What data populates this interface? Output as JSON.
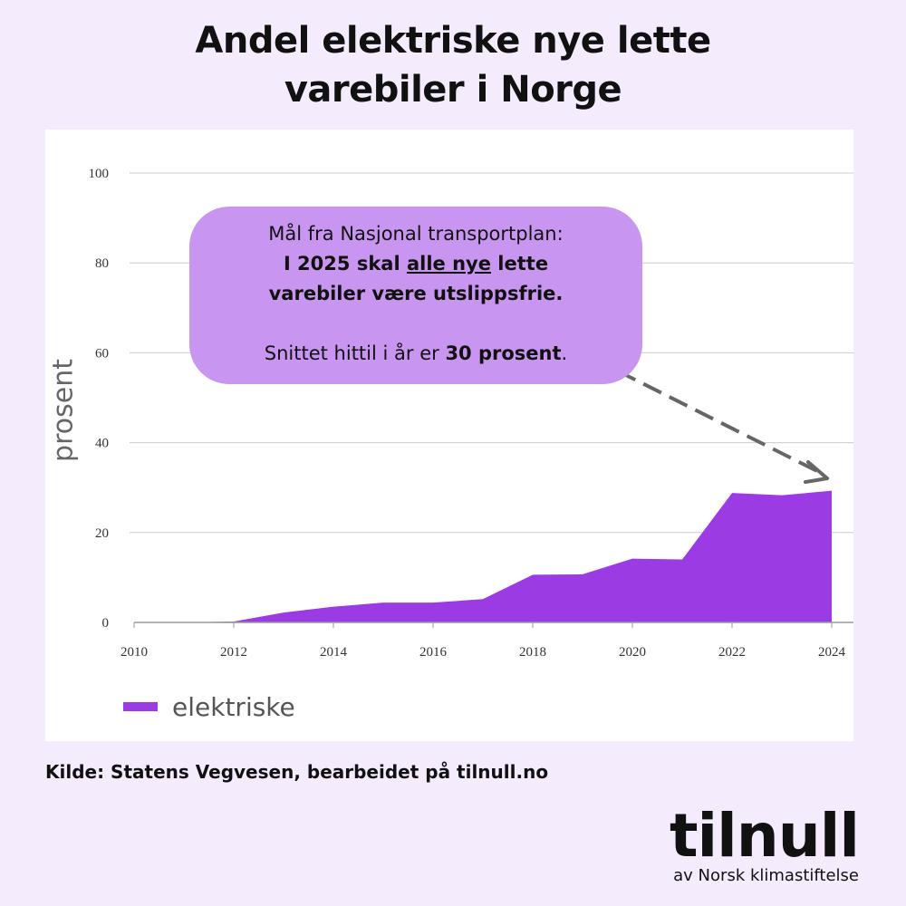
{
  "title": {
    "line1": "Andel elektriske nye lette",
    "line2": "varebiler i Norge"
  },
  "chart_data": {
    "type": "area",
    "ylabel": "prosent",
    "xlabel": "",
    "ylim": [
      0,
      100
    ],
    "xlim": [
      2010,
      2024
    ],
    "yticks": [
      0,
      20,
      40,
      60,
      80,
      100
    ],
    "xticks": [
      2010,
      2012,
      2014,
      2016,
      2018,
      2020,
      2022,
      2024
    ],
    "grid": true,
    "legend_position": "bottom-left",
    "series": [
      {
        "name": "elektriske",
        "color": "#9b3be4",
        "x": [
          2011,
          2012,
          2013,
          2014,
          2015,
          2016,
          2017,
          2018,
          2019,
          2020,
          2021,
          2022,
          2023,
          2024
        ],
        "values": [
          0,
          0.2,
          2.2,
          3.5,
          4.4,
          4.4,
          5.2,
          10.6,
          10.7,
          14.2,
          14.0,
          28.8,
          28.3,
          29.3
        ]
      }
    ]
  },
  "callout": {
    "line1": "Mål fra Nasjonal transportplan:",
    "line2_pre": "I 2025 skal ",
    "line2_underlined": "alle nye",
    "line2_post": " lette",
    "line3": "varebiler være utslippsfrie.",
    "line4_pre": "Snittet hittil i år er ",
    "line4_bold": "30 prosent",
    "line4_post": "."
  },
  "source": "Kilde: Statens Vegvesen, bearbeidet på tilnull.no",
  "logo": {
    "wordmark": "tilnull",
    "tagline": "av Norsk klimastiftelse"
  }
}
